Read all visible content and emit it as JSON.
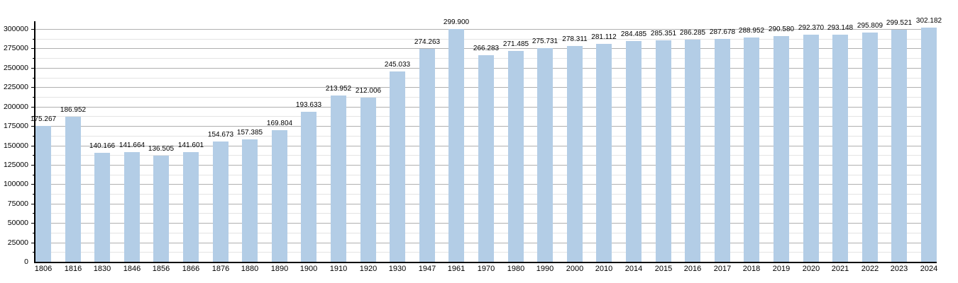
{
  "chart_data": {
    "type": "bar",
    "title": "",
    "xlabel": "",
    "ylabel": "",
    "categories": [
      "1806",
      "1816",
      "1830",
      "1846",
      "1856",
      "1866",
      "1876",
      "1880",
      "1890",
      "1900",
      "1910",
      "1920",
      "1930",
      "1947",
      "1961",
      "1970",
      "1980",
      "1990",
      "2000",
      "2010",
      "2014",
      "2015",
      "2016",
      "2017",
      "2018",
      "2019",
      "2020",
      "2021",
      "2022",
      "2023",
      "2024"
    ],
    "values": [
      175267,
      186952,
      140166,
      141664,
      136505,
      141601,
      154673,
      157385,
      169804,
      193633,
      213952,
      212006,
      245033,
      274263,
      299900,
      266283,
      271485,
      275731,
      278311,
      281112,
      284485,
      285351,
      286285,
      287678,
      288952,
      290580,
      292370,
      293148,
      295809,
      299521,
      302182
    ],
    "value_labels": [
      "175.267",
      "186.952",
      "140.166",
      "141.664",
      "136.505",
      "141.601",
      "154.673",
      "157.385",
      "169.804",
      "193.633",
      "213.952",
      "212.006",
      "245.033",
      "274.263",
      "299.900",
      "266.283",
      "271.485",
      "275.731",
      "278.311",
      "281.112",
      "284.485",
      "285.351",
      "286.285",
      "287.678",
      "288.952",
      "290.580",
      "292.370",
      "293.148",
      "295.809",
      "299.521",
      "302.182"
    ],
    "ylim": [
      0,
      300000
    ],
    "y_tick_step": 25000,
    "y_minor_step": 12500,
    "y_tick_labels": [
      "0",
      "25000",
      "50000",
      "75000",
      "100000",
      "125000",
      "150000",
      "175000",
      "200000",
      "225000",
      "250000",
      "275000",
      "300000"
    ],
    "grid": "on",
    "legend": "none",
    "colors": {
      "bar_fill": "#b3cde6",
      "grid_major": "#b0b0b0",
      "grid_minor": "#e4e4e4",
      "axis": "#000000",
      "text": "#000000",
      "background": "#ffffff"
    }
  }
}
